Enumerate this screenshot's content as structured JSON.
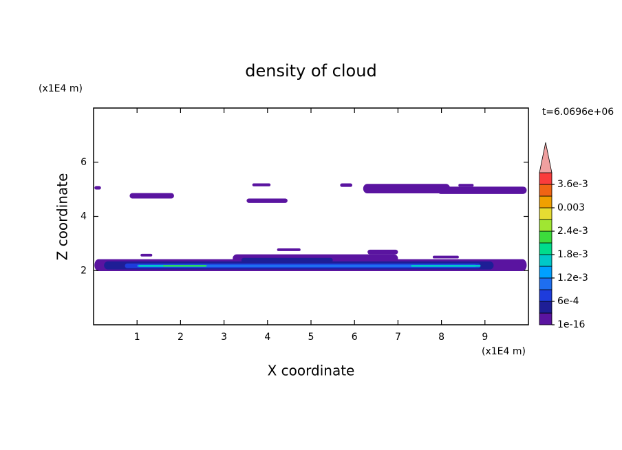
{
  "chart_data": {
    "type": "contour",
    "title": "density of cloud",
    "xlabel": "X coordinate",
    "ylabel": "Z coordinate",
    "xunit": "(x1E4 m)",
    "yunit": "(x1E4 m)",
    "time_label": "t=6.0696e+06",
    "xlim": [
      0,
      10
    ],
    "ylim": [
      0,
      8
    ],
    "xticks": [
      1,
      2,
      3,
      4,
      5,
      6,
      7,
      8,
      9
    ],
    "yticks": [
      2,
      4,
      6
    ],
    "levels": [
      1e-16,
      0.0003,
      0.0006,
      0.0009,
      0.0012,
      0.0015,
      0.0018,
      0.0021,
      0.0024,
      0.0027,
      0.003,
      0.0033,
      0.0036
    ],
    "colors": [
      "#5a14a0",
      "#1e1e96",
      "#1e3cdc",
      "#1e6ef0",
      "#00a0ff",
      "#00c8c8",
      "#00dc8c",
      "#3cdc3c",
      "#a0e632",
      "#e6dc32",
      "#f0a000",
      "#f06414",
      "#fa3c3c"
    ],
    "over_color": "#f0a0a0",
    "colorbar_ticks": [
      {
        "value": 1e-16,
        "label": "1e-16"
      },
      {
        "value": 0.0006,
        "label": "6e-4"
      },
      {
        "value": 0.0012,
        "label": "1.2e-3"
      },
      {
        "value": 0.0018,
        "label": "1.8e-3"
      },
      {
        "value": 0.0024,
        "label": "2.4e-3"
      },
      {
        "value": 0.003,
        "label": "0.003"
      },
      {
        "value": 0.0036,
        "label": "3.6e-3"
      }
    ],
    "regions": [
      {
        "level": 1e-16,
        "x": [
          0.02,
          0.17
        ],
        "z": [
          4.99,
          5.12
        ]
      },
      {
        "level": 1e-16,
        "x": [
          0.83,
          1.85
        ],
        "z": [
          4.66,
          4.86
        ]
      },
      {
        "level": 1e-16,
        "x": [
          3.65,
          4.07
        ],
        "z": [
          5.11,
          5.22
        ]
      },
      {
        "level": 1e-16,
        "x": [
          3.52,
          4.46
        ],
        "z": [
          4.5,
          4.66
        ]
      },
      {
        "level": 1e-16,
        "x": [
          5.67,
          5.95
        ],
        "z": [
          5.09,
          5.22
        ]
      },
      {
        "level": 1e-16,
        "x": [
          6.2,
          8.2
        ],
        "z": [
          4.85,
          5.2
        ]
      },
      {
        "level": 1e-16,
        "x": [
          7.9,
          9.96
        ],
        "z": [
          4.83,
          5.1
        ]
      },
      {
        "level": 1e-16,
        "x": [
          8.39,
          8.74
        ],
        "z": [
          5.1,
          5.2
        ]
      },
      {
        "level": 1e-16,
        "x": [
          1.08,
          1.35
        ],
        "z": [
          2.52,
          2.62
        ]
      },
      {
        "level": 1e-16,
        "x": [
          4.22,
          4.76
        ],
        "z": [
          2.72,
          2.82
        ]
      },
      {
        "level": 1e-16,
        "x": [
          6.3,
          7.0
        ],
        "z": [
          2.6,
          2.77
        ]
      },
      {
        "level": 1e-16,
        "x": [
          7.8,
          8.4
        ],
        "z": [
          2.45,
          2.55
        ]
      },
      {
        "level": 1e-16,
        "x": [
          3.2,
          7.0
        ],
        "z": [
          2.3,
          2.6
        ]
      },
      {
        "level": 1e-16,
        "x": [
          0.02,
          9.96
        ],
        "z": [
          1.98,
          2.42
        ]
      },
      {
        "level": 0.0003,
        "x": [
          0.24,
          9.2
        ],
        "z": [
          2.04,
          2.34
        ]
      },
      {
        "level": 0.0003,
        "x": [
          3.4,
          5.5
        ],
        "z": [
          2.3,
          2.47
        ]
      },
      {
        "level": 0.0006,
        "x": [
          0.72,
          8.9
        ],
        "z": [
          2.09,
          2.26
        ]
      },
      {
        "level": 0.0009,
        "x": [
          1.0,
          8.8
        ],
        "z": [
          2.13,
          2.22
        ]
      },
      {
        "level": 0.0015,
        "x": [
          1.03,
          2.6
        ],
        "z": [
          2.14,
          2.21
        ]
      },
      {
        "level": 0.0015,
        "x": [
          7.3,
          8.9
        ],
        "z": [
          2.14,
          2.21
        ]
      },
      {
        "level": 0.0021,
        "x": [
          1.6,
          2.6
        ],
        "z": [
          2.15,
          2.2
        ]
      }
    ]
  }
}
